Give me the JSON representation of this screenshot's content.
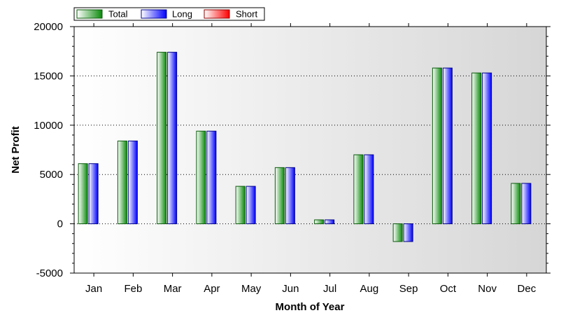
{
  "chart_data": {
    "type": "bar",
    "title": "",
    "xlabel": "Month of Year",
    "ylabel": "Net Profit",
    "ylim": [
      -5000,
      20000
    ],
    "yticks": [
      -5000,
      0,
      5000,
      10000,
      15000,
      20000
    ],
    "ytick_labels": [
      "-5000",
      "0",
      "5000",
      "10000",
      "15000",
      "20000"
    ],
    "grid": "horizontal dotted",
    "legend_position": "top-left",
    "categories": [
      "Jan",
      "Feb",
      "Mar",
      "Apr",
      "May",
      "Jun",
      "Jul",
      "Aug",
      "Sep",
      "Oct",
      "Nov",
      "Dec"
    ],
    "series": [
      {
        "name": "Total",
        "color": "#0a8a0a",
        "values": [
          6100,
          8400,
          17400,
          9400,
          3800,
          5700,
          400,
          7000,
          -1800,
          15800,
          15300,
          4100
        ]
      },
      {
        "name": "Long",
        "color": "#0000ff",
        "values": [
          6100,
          8400,
          17400,
          9400,
          3800,
          5700,
          400,
          7000,
          -1800,
          15800,
          15300,
          4100
        ]
      },
      {
        "name": "Short",
        "color": "#ff0000",
        "values": [
          0,
          0,
          0,
          0,
          0,
          0,
          0,
          0,
          0,
          0,
          0,
          0
        ]
      }
    ]
  }
}
